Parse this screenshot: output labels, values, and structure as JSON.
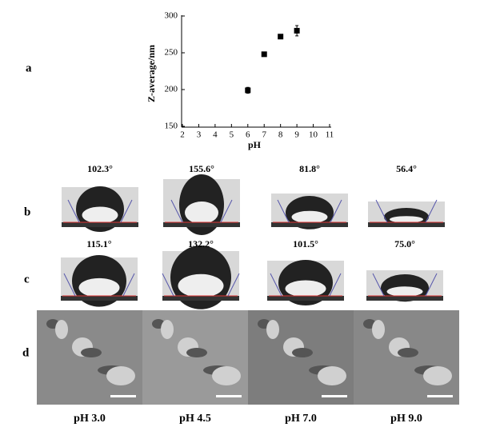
{
  "panels": [
    "a",
    "b",
    "c",
    "d"
  ],
  "chart_data": {
    "type": "scatter",
    "x": [
      6,
      7,
      8,
      9
    ],
    "values": [
      199,
      248,
      272,
      280
    ],
    "errors": [
      4,
      2,
      3,
      7
    ],
    "color": "#000000",
    "xlabel": "pH",
    "ylabel": "Z-average/nm",
    "xlim": [
      2,
      11
    ],
    "ylim": [
      150,
      300
    ],
    "xticks": [
      2,
      3,
      4,
      5,
      6,
      7,
      8,
      9,
      10,
      11
    ],
    "yticks": [
      150,
      200,
      250,
      300
    ]
  },
  "row_b": {
    "angles": [
      "102.3°",
      "155.6°",
      "81.8°",
      "56.4°"
    ]
  },
  "row_c": {
    "angles": [
      "115.1°",
      "132.2°",
      "101.5°",
      "75.0°"
    ]
  },
  "row_d": {
    "labels": [
      "pH 3.0",
      "pH 4.5",
      "pH 7.0",
      "pH 9.0"
    ]
  }
}
